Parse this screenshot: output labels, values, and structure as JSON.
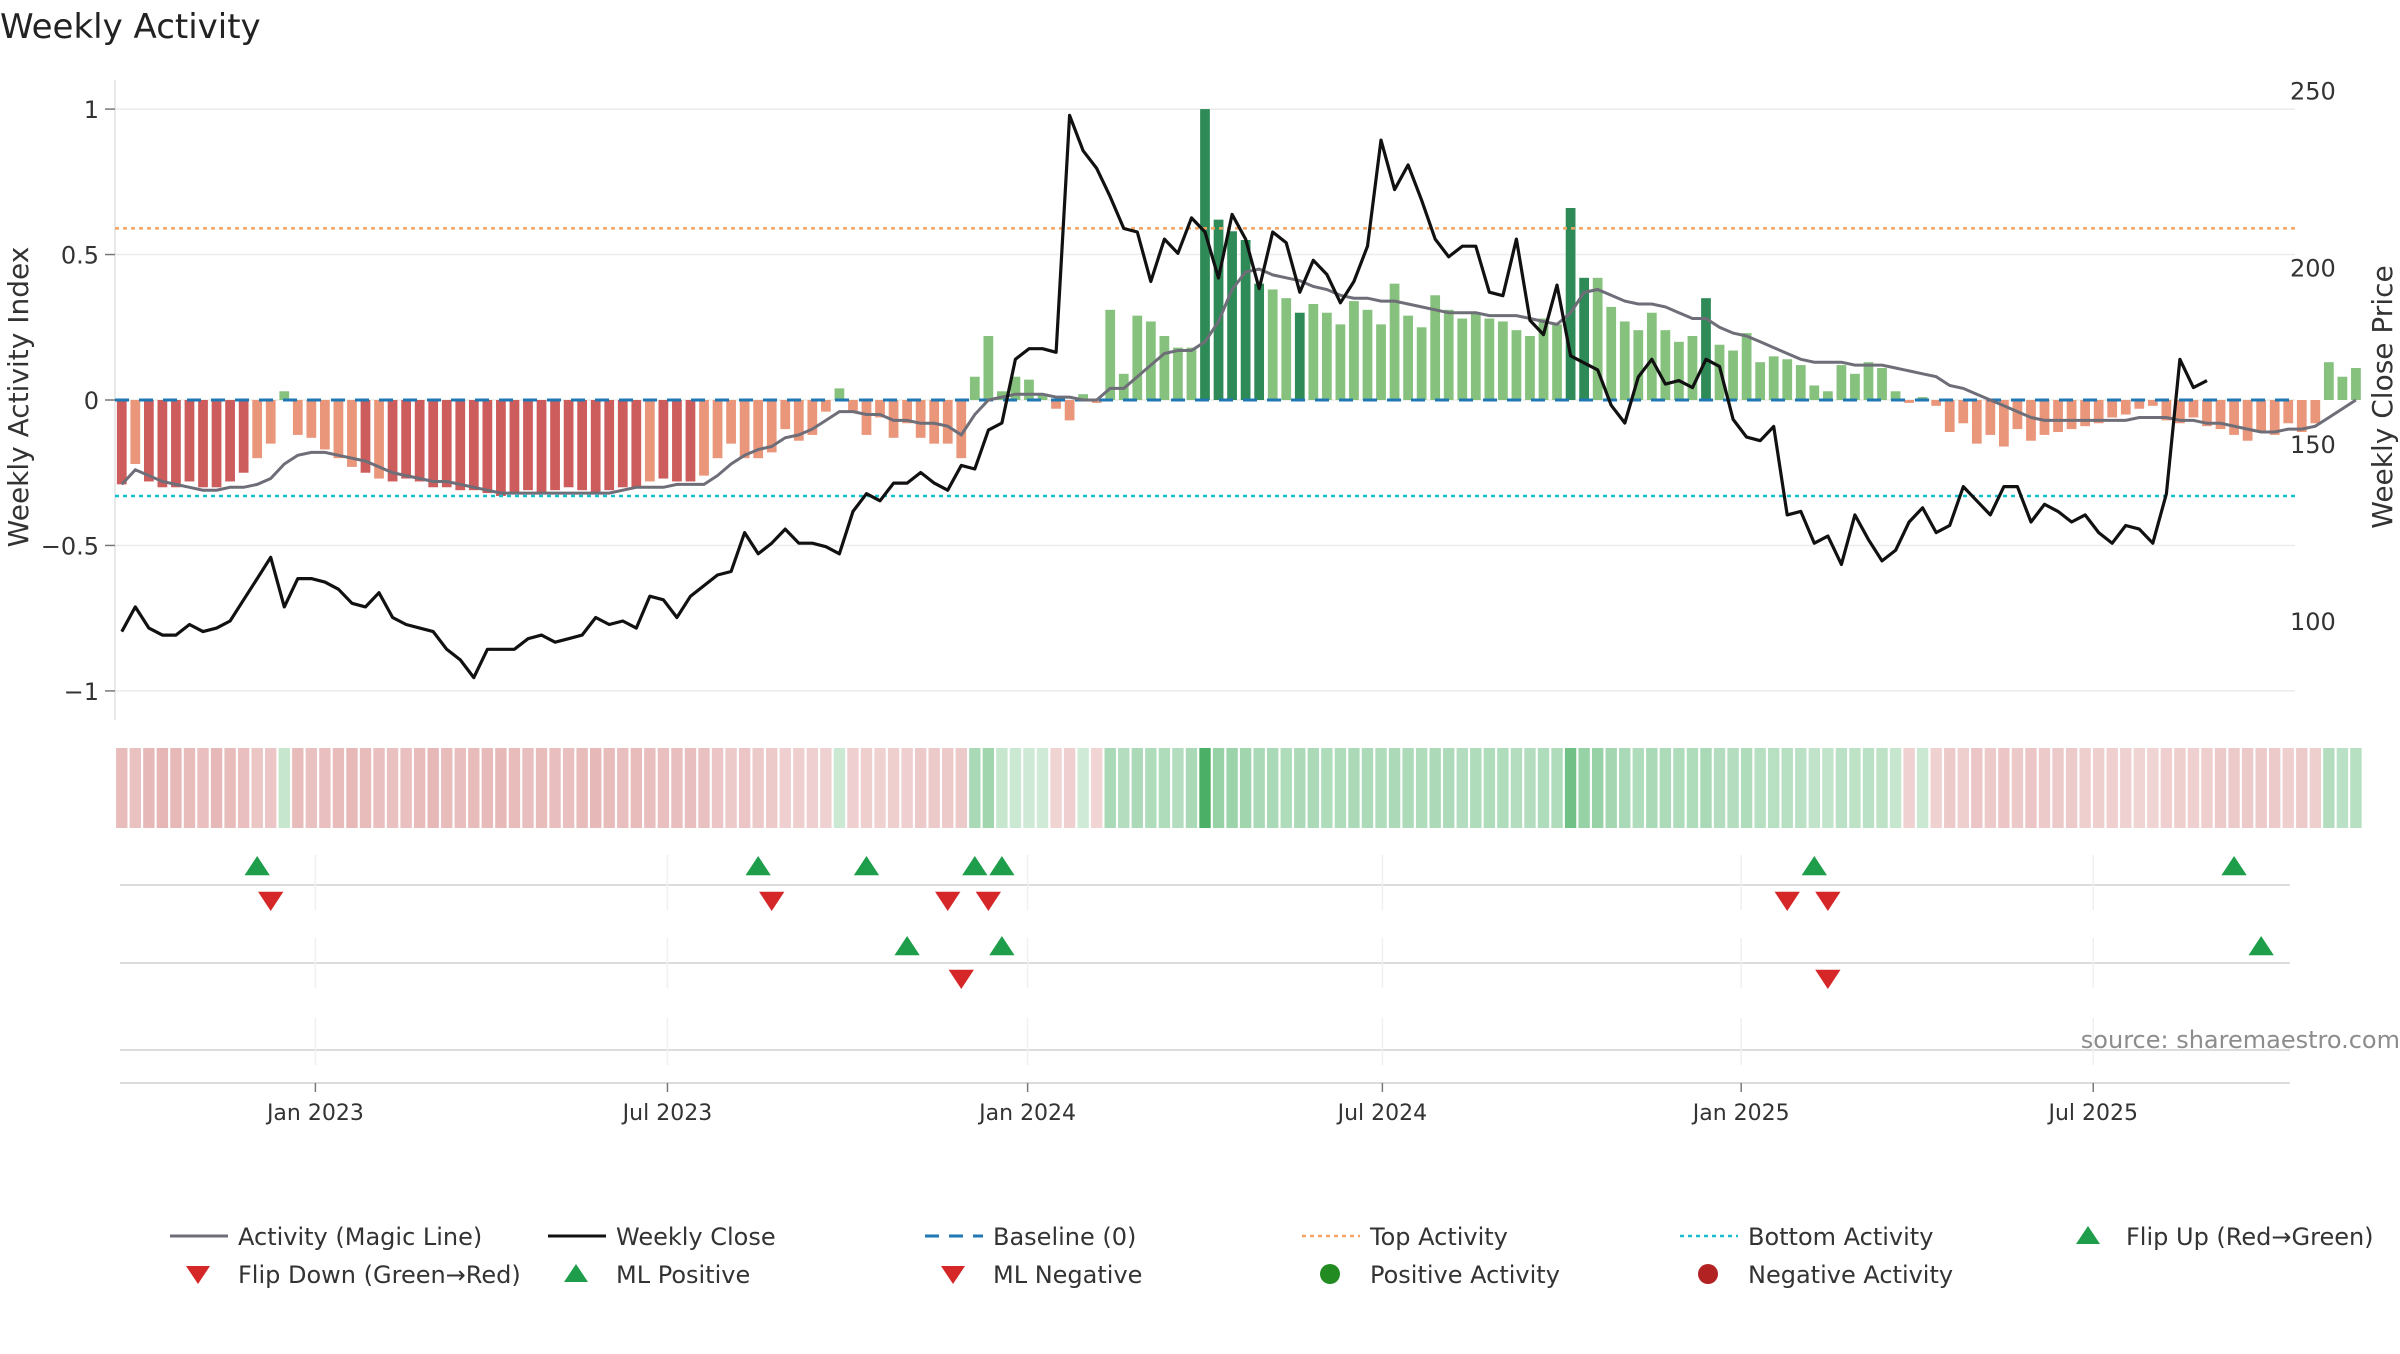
{
  "title": "Weekly Activity",
  "source": "source: sharemaestro.com",
  "colors": {
    "strong_green": "#2e8b57",
    "light_green": "#86c17e",
    "strong_red": "#cd5c5c",
    "light_red": "#e9967a",
    "magic_line": "#6e6e78",
    "close_line": "#111111",
    "baseline": "#1f77b4",
    "top_line": "#f4a460",
    "bottom_line": "#17becf",
    "marker_green": "#1e9e4a",
    "marker_red": "#d62728",
    "legend_pos": "#228b22",
    "legend_neg": "#b22222"
  },
  "chart_data": {
    "type": "bar+line",
    "title": "Weekly Activity",
    "ylabel_left": "Weekly Activity Index",
    "ylabel_right": "Weekly Close Price",
    "ylim_left": [
      -1.1,
      1.1
    ],
    "ylim_right": [
      72,
      253
    ],
    "left_ticks": [
      {
        "v": 1,
        "label": "1"
      },
      {
        "v": 0.5,
        "label": "0.5"
      },
      {
        "v": 0,
        "label": "0"
      },
      {
        "v": -0.5,
        "label": "−0.5"
      },
      {
        "v": -1,
        "label": "−1"
      }
    ],
    "right_ticks": [
      {
        "v": 250,
        "label": "250"
      },
      {
        "v": 200,
        "label": "200"
      },
      {
        "v": 150,
        "label": "150"
      },
      {
        "v": 100,
        "label": "100"
      }
    ],
    "x_range_weeks": [
      0,
      160
    ],
    "x_ticks": [
      {
        "week": 14.3,
        "label": "Jan 2023"
      },
      {
        "week": 40.3,
        "label": "Jul 2023"
      },
      {
        "week": 66.9,
        "label": "Jan 2024"
      },
      {
        "week": 93.1,
        "label": "Jul 2024"
      },
      {
        "week": 119.6,
        "label": "Jan 2025"
      },
      {
        "week": 145.6,
        "label": "Jul 2025"
      }
    ],
    "top_activity": 0.59,
    "bottom_activity": -0.33,
    "baseline": 0,
    "activity": [
      -0.29,
      -0.22,
      -0.28,
      -0.3,
      -0.3,
      -0.28,
      -0.3,
      -0.3,
      -0.28,
      -0.25,
      -0.2,
      -0.15,
      0.03,
      -0.12,
      -0.13,
      -0.17,
      -0.2,
      -0.23,
      -0.25,
      -0.27,
      -0.28,
      -0.27,
      -0.28,
      -0.3,
      -0.3,
      -0.31,
      -0.31,
      -0.32,
      -0.33,
      -0.32,
      -0.31,
      -0.32,
      -0.31,
      -0.3,
      -0.31,
      -0.32,
      -0.31,
      -0.3,
      -0.3,
      -0.28,
      -0.27,
      -0.28,
      -0.28,
      -0.26,
      -0.2,
      -0.15,
      -0.2,
      -0.2,
      -0.18,
      -0.1,
      -0.14,
      -0.12,
      -0.04,
      0.04,
      -0.04,
      -0.12,
      -0.06,
      -0.13,
      -0.08,
      -0.13,
      -0.15,
      -0.15,
      -0.2,
      0.08,
      0.22,
      0.03,
      0.08,
      0.07,
      0.02,
      -0.03,
      -0.07,
      0.02,
      -0.01,
      0.31,
      0.09,
      0.29,
      0.27,
      0.22,
      0.18,
      0.18,
      1.0,
      0.62,
      0.58,
      0.55,
      0.4,
      0.38,
      0.35,
      0.3,
      0.33,
      0.3,
      0.26,
      0.34,
      0.31,
      0.26,
      0.4,
      0.29,
      0.25,
      0.36,
      0.31,
      0.28,
      0.3,
      0.28,
      0.27,
      0.24,
      0.22,
      0.28,
      0.26,
      0.66,
      0.42,
      0.42,
      0.32,
      0.27,
      0.24,
      0.3,
      0.24,
      0.2,
      0.22,
      0.35,
      0.19,
      0.17,
      0.23,
      0.13,
      0.15,
      0.14,
      0.12,
      0.05,
      0.03,
      0.12,
      0.09,
      0.13,
      0.11,
      0.03,
      -0.01,
      0.01,
      -0.02,
      -0.11,
      -0.08,
      -0.15,
      -0.12,
      -0.16,
      -0.1,
      -0.14,
      -0.12,
      -0.11,
      -0.1,
      -0.09,
      -0.08,
      -0.06,
      -0.05,
      -0.03,
      -0.02,
      -0.07,
      -0.08,
      -0.06,
      -0.09,
      -0.1,
      -0.12,
      -0.14,
      -0.11,
      -0.12,
      -0.08,
      -0.11,
      -0.08,
      0.13,
      0.08,
      0.11
    ],
    "magic_line": [
      -0.29,
      -0.24,
      -0.26,
      -0.28,
      -0.29,
      -0.3,
      -0.31,
      -0.31,
      -0.3,
      -0.3,
      -0.29,
      -0.27,
      -0.22,
      -0.19,
      -0.18,
      -0.18,
      -0.19,
      -0.2,
      -0.21,
      -0.23,
      -0.25,
      -0.26,
      -0.27,
      -0.28,
      -0.28,
      -0.29,
      -0.3,
      -0.31,
      -0.32,
      -0.32,
      -0.32,
      -0.32,
      -0.32,
      -0.32,
      -0.32,
      -0.32,
      -0.32,
      -0.31,
      -0.3,
      -0.3,
      -0.3,
      -0.29,
      -0.29,
      -0.29,
      -0.26,
      -0.22,
      -0.19,
      -0.17,
      -0.16,
      -0.13,
      -0.12,
      -0.1,
      -0.07,
      -0.04,
      -0.04,
      -0.05,
      -0.05,
      -0.07,
      -0.07,
      -0.08,
      -0.08,
      -0.09,
      -0.12,
      -0.05,
      0.0,
      0.01,
      0.02,
      0.02,
      0.02,
      0.01,
      0.01,
      0.0,
      0.0,
      0.04,
      0.04,
      0.08,
      0.12,
      0.16,
      0.17,
      0.17,
      0.2,
      0.27,
      0.38,
      0.44,
      0.45,
      0.43,
      0.42,
      0.41,
      0.39,
      0.38,
      0.36,
      0.35,
      0.35,
      0.34,
      0.34,
      0.33,
      0.32,
      0.31,
      0.3,
      0.3,
      0.3,
      0.29,
      0.29,
      0.29,
      0.28,
      0.27,
      0.26,
      0.3,
      0.37,
      0.38,
      0.36,
      0.34,
      0.33,
      0.33,
      0.32,
      0.3,
      0.28,
      0.28,
      0.25,
      0.23,
      0.22,
      0.2,
      0.18,
      0.16,
      0.14,
      0.13,
      0.13,
      0.13,
      0.12,
      0.12,
      0.12,
      0.11,
      0.1,
      0.09,
      0.08,
      0.05,
      0.04,
      0.02,
      0.0,
      -0.02,
      -0.04,
      -0.06,
      -0.07,
      -0.07,
      -0.07,
      -0.07,
      -0.07,
      -0.07,
      -0.07,
      -0.06,
      -0.06,
      -0.06,
      -0.07,
      -0.07,
      -0.08,
      -0.08,
      -0.09,
      -0.1,
      -0.11,
      -0.11,
      -0.1,
      -0.1,
      -0.09,
      -0.06,
      -0.03,
      0.0
    ],
    "weekly_close": [
      97,
      104,
      98,
      96,
      96,
      99,
      97,
      98,
      100,
      106,
      112,
      118,
      104,
      112,
      112,
      111,
      109,
      105,
      104,
      108,
      101,
      99,
      98,
      97,
      92,
      89,
      84,
      92,
      92,
      92,
      95,
      96,
      94,
      95,
      96,
      101,
      99,
      100,
      98,
      107,
      106,
      101,
      107,
      110,
      113,
      114,
      125,
      119,
      122,
      126,
      122,
      122,
      121,
      119,
      131,
      136,
      134,
      139,
      139,
      142,
      139,
      137,
      144,
      143,
      154,
      156,
      174,
      177,
      177,
      176,
      243,
      233,
      228,
      220,
      211,
      210,
      196,
      208,
      204,
      214,
      210,
      197,
      215,
      208,
      194,
      210,
      207,
      193,
      202,
      198,
      190,
      196,
      206,
      236,
      222,
      229,
      219,
      208,
      203,
      206,
      206,
      193,
      192,
      208,
      185,
      181,
      195,
      175,
      173,
      171,
      161,
      156,
      169,
      174,
      167,
      168,
      166,
      174,
      172,
      157,
      152,
      151,
      155,
      130,
      131,
      122,
      124,
      116,
      130,
      123,
      117,
      120,
      128,
      132,
      125,
      127,
      138,
      134,
      130,
      138,
      138,
      128,
      133,
      131,
      128,
      130,
      125,
      122,
      127,
      126,
      122,
      136,
      174,
      166,
      168
    ],
    "heat_alpha": [
      0.38,
      0.35,
      0.4,
      0.42,
      0.4,
      0.38,
      0.36,
      0.4,
      0.38,
      0.36,
      0.33,
      0.32,
      0.3,
      0.38,
      0.35,
      0.36,
      0.38,
      0.4,
      0.38,
      0.36,
      0.35,
      0.36,
      0.38,
      0.4,
      0.38,
      0.37,
      0.38,
      0.39,
      0.4,
      0.38,
      0.37,
      0.38,
      0.37,
      0.36,
      0.38,
      0.4,
      0.38,
      0.37,
      0.38,
      0.37,
      0.36,
      0.37,
      0.37,
      0.35,
      0.32,
      0.3,
      0.32,
      0.3,
      0.3,
      0.27,
      0.28,
      0.27,
      0.26,
      0.28,
      0.27,
      0.28,
      0.26,
      0.28,
      0.27,
      0.3,
      0.3,
      0.3,
      0.3,
      0.45,
      0.5,
      0.3,
      0.28,
      0.26,
      0.25,
      0.25,
      0.27,
      0.25,
      0.24,
      0.45,
      0.4,
      0.44,
      0.42,
      0.42,
      0.4,
      0.45,
      0.95,
      0.55,
      0.52,
      0.5,
      0.45,
      0.45,
      0.42,
      0.44,
      0.44,
      0.42,
      0.42,
      0.44,
      0.43,
      0.42,
      0.44,
      0.43,
      0.42,
      0.44,
      0.43,
      0.4,
      0.42,
      0.42,
      0.42,
      0.4,
      0.4,
      0.42,
      0.42,
      0.75,
      0.55,
      0.55,
      0.48,
      0.45,
      0.42,
      0.45,
      0.43,
      0.42,
      0.42,
      0.45,
      0.4,
      0.4,
      0.42,
      0.38,
      0.38,
      0.38,
      0.36,
      0.33,
      0.32,
      0.36,
      0.35,
      0.36,
      0.35,
      0.3,
      0.26,
      0.28,
      0.26,
      0.3,
      0.28,
      0.32,
      0.3,
      0.32,
      0.3,
      0.32,
      0.3,
      0.3,
      0.3,
      0.28,
      0.28,
      0.27,
      0.26,
      0.25,
      0.25,
      0.27,
      0.28,
      0.27,
      0.28,
      0.3,
      0.3,
      0.3,
      0.3,
      0.3,
      0.28,
      0.3,
      0.28,
      0.4,
      0.36,
      0.38
    ],
    "flip_up_weeks": [
      10,
      47,
      55,
      63,
      65,
      125,
      156
    ],
    "flip_down_weeks": [
      11,
      48,
      61,
      64,
      123,
      126
    ],
    "ml_positive_weeks": [
      58,
      65,
      158
    ],
    "ml_negative_weeks": [
      62,
      126
    ]
  },
  "legend": [
    {
      "key": "magic",
      "label": "Activity (Magic Line)"
    },
    {
      "key": "close",
      "label": "Weekly Close"
    },
    {
      "key": "baseline",
      "label": "Baseline (0)"
    },
    {
      "key": "top",
      "label": "Top Activity"
    },
    {
      "key": "bottom",
      "label": "Bottom Activity"
    },
    {
      "key": "flipup",
      "label": "Flip Up (Red→Green)"
    },
    {
      "key": "flipdown",
      "label": "Flip Down (Green→Red)"
    },
    {
      "key": "mlpos",
      "label": "ML Positive"
    },
    {
      "key": "mlneg",
      "label": "ML Negative"
    },
    {
      "key": "posact",
      "label": "Positive Activity"
    },
    {
      "key": "negact",
      "label": "Negative Activity"
    }
  ]
}
